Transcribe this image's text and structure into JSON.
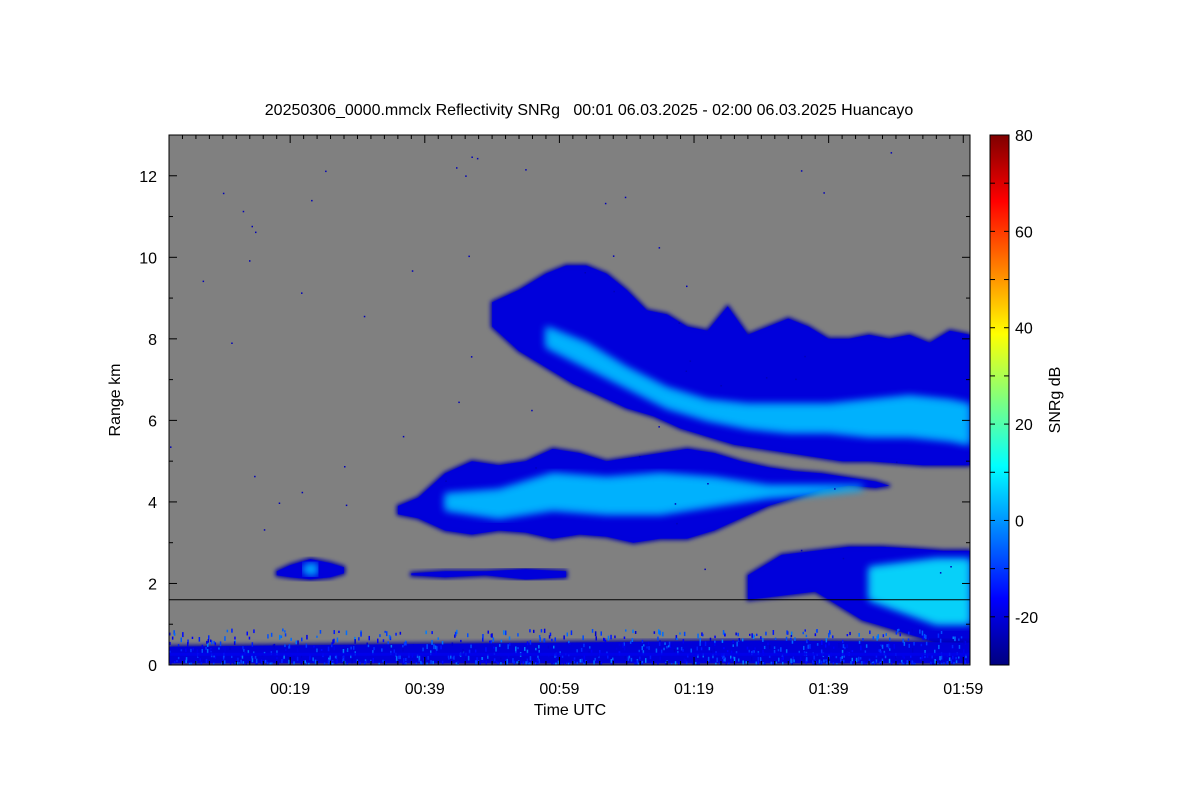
{
  "chart_data": {
    "type": "heatmap",
    "title": "20250306_0000.mmclx Reflectivity SNRg   00:01 06.03.2025 - 02:00 06.03.2025 Huancayo",
    "xlabel": "Time UTC",
    "ylabel": "Range km",
    "x_range_minutes": [
      1,
      120
    ],
    "x_ticks": [
      {
        "label": "00:19",
        "minute": 19
      },
      {
        "label": "00:39",
        "minute": 39
      },
      {
        "label": "00:59",
        "minute": 59
      },
      {
        "label": "01:19",
        "minute": 79
      },
      {
        "label": "01:39",
        "minute": 99
      },
      {
        "label": "01:59",
        "minute": 119
      }
    ],
    "ylim": [
      0,
      13
    ],
    "y_ticks": [
      {
        "label": "0",
        "value": 0
      },
      {
        "label": "2",
        "value": 2
      },
      {
        "label": "4",
        "value": 4
      },
      {
        "label": "6",
        "value": 6
      },
      {
        "label": "8",
        "value": 8
      },
      {
        "label": "10",
        "value": 10
      },
      {
        "label": "12",
        "value": 12
      }
    ],
    "background_color": "#808080",
    "reference_line_km": 1.6,
    "colorbar": {
      "label": "SNRg dB",
      "range": [
        -30,
        80
      ],
      "ticks": [
        {
          "label": "-20",
          "value": -20
        },
        {
          "label": "0",
          "value": 0
        },
        {
          "label": "20",
          "value": 20
        },
        {
          "label": "40",
          "value": 40
        },
        {
          "label": "60",
          "value": 60
        },
        {
          "label": "80",
          "value": 80
        }
      ],
      "colormap": [
        "#00007f",
        "#0000ff",
        "#007fff",
        "#00ffff",
        "#7fff7f",
        "#ffff00",
        "#ff7f00",
        "#ff0000",
        "#7f0000"
      ]
    },
    "echo_regions": [
      {
        "name": "upper-cloud-layer",
        "t_start": 49,
        "t_end": 120,
        "km_bottom": 4.9,
        "km_top": 9.9,
        "snr_peak": 8,
        "top": [
          [
            49,
            8.9
          ],
          [
            53,
            9.2
          ],
          [
            57,
            9.6
          ],
          [
            60,
            9.8
          ],
          [
            63,
            9.8
          ],
          [
            66,
            9.6
          ],
          [
            69,
            9.2
          ],
          [
            72,
            8.7
          ],
          [
            75,
            8.6
          ],
          [
            78,
            8.3
          ],
          [
            81,
            8.2
          ],
          [
            84,
            8.8
          ],
          [
            87,
            8.1
          ],
          [
            90,
            8.3
          ],
          [
            93,
            8.5
          ],
          [
            96,
            8.3
          ],
          [
            99,
            8.0
          ],
          [
            102,
            8.0
          ],
          [
            105,
            8.1
          ],
          [
            108,
            8.0
          ],
          [
            111,
            8.1
          ],
          [
            114,
            7.9
          ],
          [
            117,
            8.2
          ],
          [
            120,
            8.1
          ]
        ],
        "bottom": [
          [
            49,
            8.3
          ],
          [
            53,
            7.7
          ],
          [
            57,
            7.3
          ],
          [
            61,
            6.9
          ],
          [
            65,
            6.6
          ],
          [
            69,
            6.3
          ],
          [
            73,
            6.1
          ],
          [
            77,
            5.8
          ],
          [
            81,
            5.6
          ],
          [
            85,
            5.4
          ],
          [
            89,
            5.3
          ],
          [
            93,
            5.2
          ],
          [
            97,
            5.1
          ],
          [
            101,
            5.0
          ],
          [
            105,
            5.0
          ],
          [
            109,
            4.95
          ],
          [
            113,
            4.9
          ],
          [
            117,
            4.9
          ],
          [
            120,
            4.9
          ]
        ],
        "core_top": [
          [
            57,
            8.3
          ],
          [
            63,
            7.9
          ],
          [
            69,
            7.3
          ],
          [
            75,
            6.8
          ],
          [
            81,
            6.5
          ],
          [
            87,
            6.4
          ],
          [
            93,
            6.4
          ],
          [
            99,
            6.4
          ],
          [
            105,
            6.5
          ],
          [
            111,
            6.6
          ],
          [
            117,
            6.5
          ],
          [
            120,
            6.4
          ]
        ],
        "core_bottom": [
          [
            57,
            7.8
          ],
          [
            63,
            7.3
          ],
          [
            69,
            6.8
          ],
          [
            75,
            6.3
          ],
          [
            81,
            6.0
          ],
          [
            87,
            5.8
          ],
          [
            93,
            5.7
          ],
          [
            99,
            5.7
          ],
          [
            105,
            5.6
          ],
          [
            111,
            5.6
          ],
          [
            117,
            5.5
          ],
          [
            120,
            5.4
          ]
        ]
      },
      {
        "name": "middle-cloud-layer",
        "t_start": 35,
        "t_end": 108,
        "km_bottom": 3.0,
        "km_top": 5.3,
        "snr_peak": 8,
        "top": [
          [
            35,
            3.9
          ],
          [
            38,
            4.1
          ],
          [
            42,
            4.7
          ],
          [
            46,
            5.0
          ],
          [
            50,
            4.9
          ],
          [
            54,
            5.0
          ],
          [
            58,
            5.3
          ],
          [
            62,
            5.2
          ],
          [
            66,
            5.0
          ],
          [
            70,
            5.1
          ],
          [
            74,
            5.2
          ],
          [
            78,
            5.3
          ],
          [
            82,
            5.2
          ],
          [
            86,
            5.0
          ],
          [
            90,
            4.85
          ],
          [
            94,
            4.75
          ],
          [
            98,
            4.7
          ],
          [
            102,
            4.6
          ],
          [
            106,
            4.5
          ],
          [
            108,
            4.4
          ]
        ],
        "bottom": [
          [
            35,
            3.7
          ],
          [
            38,
            3.6
          ],
          [
            42,
            3.3
          ],
          [
            46,
            3.2
          ],
          [
            50,
            3.3
          ],
          [
            54,
            3.25
          ],
          [
            58,
            3.1
          ],
          [
            62,
            3.2
          ],
          [
            66,
            3.15
          ],
          [
            70,
            3.0
          ],
          [
            74,
            3.1
          ],
          [
            78,
            3.1
          ],
          [
            82,
            3.3
          ],
          [
            86,
            3.6
          ],
          [
            90,
            3.9
          ],
          [
            94,
            4.1
          ],
          [
            98,
            4.3
          ],
          [
            102,
            4.4
          ],
          [
            106,
            4.35
          ],
          [
            108,
            4.4
          ]
        ],
        "core_top": [
          [
            42,
            4.2
          ],
          [
            50,
            4.3
          ],
          [
            58,
            4.7
          ],
          [
            66,
            4.6
          ],
          [
            74,
            4.7
          ],
          [
            82,
            4.6
          ],
          [
            90,
            4.4
          ],
          [
            98,
            4.4
          ],
          [
            104,
            4.4
          ]
        ],
        "core_bottom": [
          [
            42,
            3.8
          ],
          [
            50,
            3.6
          ],
          [
            58,
            3.8
          ],
          [
            66,
            3.7
          ],
          [
            74,
            3.7
          ],
          [
            82,
            3.9
          ],
          [
            90,
            4.1
          ],
          [
            98,
            4.2
          ],
          [
            104,
            4.3
          ]
        ]
      },
      {
        "name": "lower-right-echo",
        "t_start": 87,
        "t_end": 120,
        "km_bottom": 0.4,
        "km_top": 2.9,
        "snr_peak": 12,
        "top": [
          [
            87,
            2.2
          ],
          [
            92,
            2.7
          ],
          [
            97,
            2.8
          ],
          [
            102,
            2.9
          ],
          [
            107,
            2.9
          ],
          [
            112,
            2.85
          ],
          [
            116,
            2.8
          ],
          [
            120,
            2.8
          ]
        ],
        "bottom": [
          [
            87,
            1.6
          ],
          [
            92,
            1.7
          ],
          [
            97,
            1.8
          ],
          [
            101,
            1.4
          ],
          [
            104,
            1.1
          ],
          [
            108,
            0.9
          ],
          [
            112,
            0.7
          ],
          [
            116,
            0.5
          ],
          [
            120,
            0.5
          ]
        ],
        "core_top": [
          [
            105,
            2.4
          ],
          [
            110,
            2.5
          ],
          [
            115,
            2.6
          ],
          [
            120,
            2.6
          ]
        ],
        "core_bottom": [
          [
            105,
            1.6
          ],
          [
            110,
            1.3
          ],
          [
            115,
            1.0
          ],
          [
            120,
            1.0
          ]
        ]
      },
      {
        "name": "small-echo-00-20",
        "t_start": 17,
        "t_end": 27,
        "km_bottom": 2.1,
        "km_top": 2.6,
        "snr_peak": 8,
        "top": [
          [
            17,
            2.3
          ],
          [
            19,
            2.45
          ],
          [
            22,
            2.6
          ],
          [
            25,
            2.5
          ],
          [
            27,
            2.4
          ]
        ],
        "bottom": [
          [
            17,
            2.2
          ],
          [
            19,
            2.15
          ],
          [
            22,
            2.1
          ],
          [
            25,
            2.15
          ],
          [
            27,
            2.25
          ]
        ],
        "core_top": [
          [
            21,
            2.45
          ],
          [
            23,
            2.5
          ]
        ],
        "core_bottom": [
          [
            21,
            2.25
          ],
          [
            23,
            2.2
          ]
        ]
      },
      {
        "name": "thin-echo-00-45",
        "t_start": 37,
        "t_end": 60,
        "km_bottom": 2.1,
        "km_top": 2.35,
        "snr_peak": -15,
        "top": [
          [
            37,
            2.25
          ],
          [
            42,
            2.3
          ],
          [
            48,
            2.3
          ],
          [
            54,
            2.35
          ],
          [
            60,
            2.3
          ]
        ],
        "bottom": [
          [
            37,
            2.2
          ],
          [
            42,
            2.15
          ],
          [
            48,
            2.2
          ],
          [
            54,
            2.1
          ],
          [
            60,
            2.15
          ]
        ]
      },
      {
        "name": "clutter-band",
        "t_start": 1,
        "t_end": 120,
        "km_bottom": 0.05,
        "km_top": 0.9,
        "snr_peak": -5,
        "top": [
          [
            1,
            0.45
          ],
          [
            30,
            0.5
          ],
          [
            60,
            0.55
          ],
          [
            90,
            0.6
          ],
          [
            120,
            0.55
          ]
        ],
        "bottom": [
          [
            1,
            0.05
          ],
          [
            120,
            0.05
          ]
        ]
      }
    ]
  }
}
